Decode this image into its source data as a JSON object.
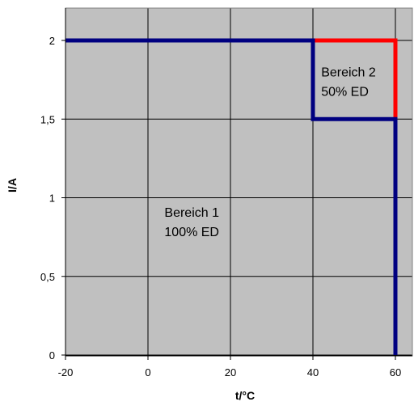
{
  "chart_data": {
    "type": "line",
    "xlabel": "t/°C",
    "ylabel": "I/A",
    "xlim": [
      -20,
      64
    ],
    "ylim": [
      0,
      2.2
    ],
    "x_ticks": [
      -20,
      0,
      20,
      40,
      60
    ],
    "x_tick_labels": [
      "-20",
      "0",
      "20",
      "40",
      "60"
    ],
    "y_ticks": [
      0,
      0.5,
      1,
      1.5,
      2
    ],
    "y_tick_labels": [
      "0",
      "0,5",
      "1",
      "1,5",
      "2"
    ],
    "grid": true,
    "background_color": "#c0c0c0",
    "series": [
      {
        "color": "#000080",
        "points": [
          [
            -20,
            2
          ],
          [
            40,
            2
          ],
          [
            40,
            1.5
          ],
          [
            60,
            1.5
          ],
          [
            60,
            0
          ]
        ]
      },
      {
        "color": "#ff0000",
        "points": [
          [
            40,
            2
          ],
          [
            60,
            2
          ],
          [
            60,
            1.5
          ]
        ]
      }
    ],
    "annotations": [
      {
        "lines": [
          "Bereich 1",
          "100% ED"
        ],
        "x": 4,
        "y": 0.88
      },
      {
        "lines": [
          "Bereich 2",
          "50% ED"
        ],
        "x": 42,
        "y": 1.77
      }
    ]
  }
}
